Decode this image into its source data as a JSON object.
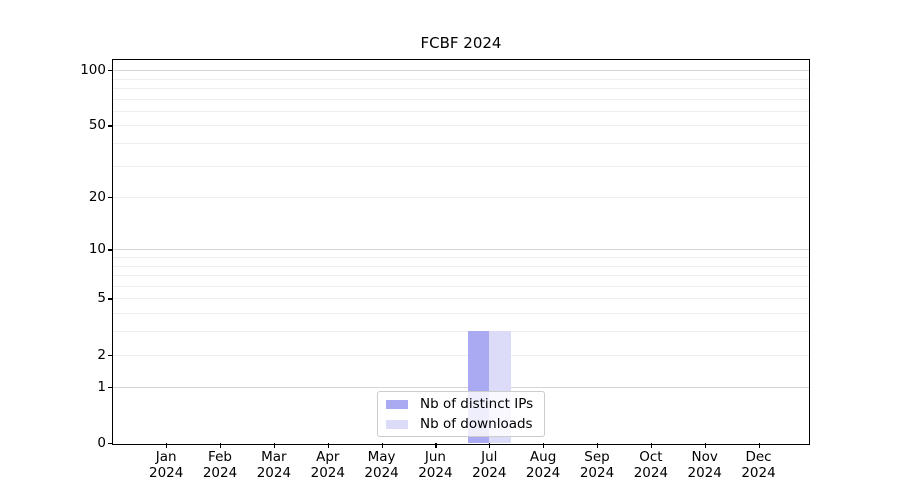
{
  "chart_data": {
    "type": "bar",
    "title": "FCBF 2024",
    "yscale": "log1p",
    "yticks": [
      0,
      1,
      2,
      5,
      10,
      20,
      50,
      100
    ],
    "ylim": [
      0,
      115
    ],
    "grid": true,
    "legend_position": "bottom-center",
    "categories": [
      {
        "month": "Jan",
        "year": "2024"
      },
      {
        "month": "Feb",
        "year": "2024"
      },
      {
        "month": "Mar",
        "year": "2024"
      },
      {
        "month": "Apr",
        "year": "2024"
      },
      {
        "month": "May",
        "year": "2024"
      },
      {
        "month": "Jun",
        "year": "2024"
      },
      {
        "month": "Jul",
        "year": "2024"
      },
      {
        "month": "Aug",
        "year": "2024"
      },
      {
        "month": "Sep",
        "year": "2024"
      },
      {
        "month": "Oct",
        "year": "2024"
      },
      {
        "month": "Nov",
        "year": "2024"
      },
      {
        "month": "Dec",
        "year": "2024"
      }
    ],
    "series": [
      {
        "name": "Nb of distinct IPs",
        "color": "#aaaaf2",
        "values": [
          0,
          0,
          0,
          0,
          0,
          0,
          3,
          0,
          0,
          0,
          0,
          0
        ]
      },
      {
        "name": "Nb of downloads",
        "color": "#dcdcf8",
        "values": [
          0,
          0,
          0,
          0,
          0,
          0,
          3,
          0,
          0,
          0,
          0,
          0
        ]
      }
    ],
    "grid_colors": {
      "minor": "#efefef",
      "major": "#d6d6d6"
    }
  }
}
